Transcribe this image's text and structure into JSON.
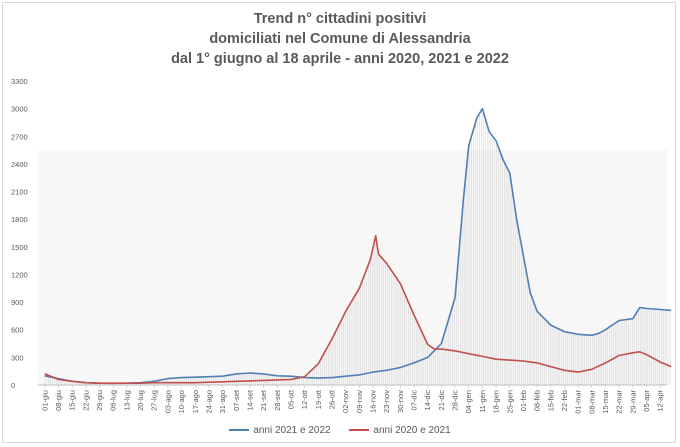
{
  "chart_data": {
    "type": "line",
    "title_lines": [
      "Trend n° cittadini positivi",
      "domiciliati nel Comune di Alessandria",
      "dal 1° giugno al 18 aprile - anni 2020, 2021 e 2022"
    ],
    "ylim": [
      0,
      3300
    ],
    "yticks": [
      0,
      300,
      600,
      900,
      1200,
      1500,
      1800,
      2100,
      2400,
      2700,
      3000,
      3300
    ],
    "x_labels": [
      "01-giu",
      "08-giu",
      "15-giu",
      "22-giu",
      "29-giu",
      "06-lug",
      "13-lug",
      "20-lug",
      "27-lug",
      "03-ago",
      "10-ago",
      "17-ago",
      "24-ago",
      "31-ago",
      "07-set",
      "14-set",
      "21-set",
      "28-set",
      "05-ott",
      "12-ott",
      "19-ott",
      "26-ott",
      "02-nov",
      "09-nov",
      "16-nov",
      "23-nov",
      "30-nov",
      "07-dic",
      "14-dic",
      "21-dic",
      "28-dic",
      "04-gen",
      "11-gen",
      "18-gen",
      "25-gen",
      "01-feb",
      "08-feb",
      "15-feb",
      "22-feb",
      "01-mar",
      "08-mar",
      "15-mar",
      "22-mar",
      "29-mar",
      "05-apr",
      "12-apr"
    ],
    "grid": false,
    "legend_position": "bottom",
    "series": [
      {
        "name": "anni 2021 e 2022",
        "color": "#4f7fb4",
        "points": [
          [
            0,
            100
          ],
          [
            1,
            70
          ],
          [
            2,
            40
          ],
          [
            3,
            25
          ],
          [
            4,
            20
          ],
          [
            5,
            18
          ],
          [
            6,
            20
          ],
          [
            7,
            25
          ],
          [
            8,
            40
          ],
          [
            9,
            70
          ],
          [
            10,
            80
          ],
          [
            11,
            85
          ],
          [
            12,
            90
          ],
          [
            13,
            95
          ],
          [
            14,
            120
          ],
          [
            15,
            130
          ],
          [
            16,
            120
          ],
          [
            17,
            100
          ],
          [
            18,
            95
          ],
          [
            19,
            80
          ],
          [
            20,
            75
          ],
          [
            21,
            80
          ],
          [
            22,
            95
          ],
          [
            23,
            110
          ],
          [
            24,
            140
          ],
          [
            25,
            160
          ],
          [
            26,
            190
          ],
          [
            27,
            240
          ],
          [
            28,
            300
          ],
          [
            29,
            450
          ],
          [
            30,
            950
          ],
          [
            30.6,
            2000
          ],
          [
            31,
            2600
          ],
          [
            31.6,
            2900
          ],
          [
            32,
            3000
          ],
          [
            32.5,
            2750
          ],
          [
            33,
            2650
          ],
          [
            33.5,
            2450
          ],
          [
            34,
            2300
          ],
          [
            34.5,
            1800
          ],
          [
            35,
            1400
          ],
          [
            35.5,
            1000
          ],
          [
            36,
            800
          ],
          [
            37,
            650
          ],
          [
            38,
            580
          ],
          [
            39,
            550
          ],
          [
            40,
            540
          ],
          [
            40.5,
            560
          ],
          [
            41,
            600
          ],
          [
            42,
            700
          ],
          [
            43,
            720
          ],
          [
            43.5,
            840
          ],
          [
            44,
            830
          ],
          [
            45,
            820
          ],
          [
            45.8,
            810
          ]
        ]
      },
      {
        "name": "anni 2020 e 2021",
        "color": "#c0504d",
        "points": [
          [
            0,
            120
          ],
          [
            1,
            60
          ],
          [
            2,
            40
          ],
          [
            3,
            25
          ],
          [
            4,
            20
          ],
          [
            5,
            20
          ],
          [
            6,
            20
          ],
          [
            7,
            20
          ],
          [
            8,
            25
          ],
          [
            9,
            25
          ],
          [
            10,
            25
          ],
          [
            11,
            25
          ],
          [
            12,
            30
          ],
          [
            13,
            35
          ],
          [
            14,
            40
          ],
          [
            15,
            45
          ],
          [
            16,
            50
          ],
          [
            17,
            55
          ],
          [
            18,
            60
          ],
          [
            19,
            90
          ],
          [
            20,
            230
          ],
          [
            21,
            500
          ],
          [
            22,
            800
          ],
          [
            23,
            1050
          ],
          [
            23.8,
            1360
          ],
          [
            24.2,
            1620
          ],
          [
            24.4,
            1420
          ],
          [
            25,
            1320
          ],
          [
            26,
            1100
          ],
          [
            27,
            760
          ],
          [
            28,
            440
          ],
          [
            28.5,
            390
          ],
          [
            29,
            390
          ],
          [
            30,
            370
          ],
          [
            31,
            340
          ],
          [
            32,
            310
          ],
          [
            33,
            280
          ],
          [
            34,
            270
          ],
          [
            35,
            260
          ],
          [
            36,
            240
          ],
          [
            37,
            200
          ],
          [
            38,
            160
          ],
          [
            39,
            140
          ],
          [
            40,
            170
          ],
          [
            41,
            240
          ],
          [
            42,
            320
          ],
          [
            43,
            350
          ],
          [
            43.5,
            360
          ],
          [
            44,
            330
          ],
          [
            45,
            250
          ],
          [
            45.8,
            200
          ]
        ]
      }
    ]
  }
}
